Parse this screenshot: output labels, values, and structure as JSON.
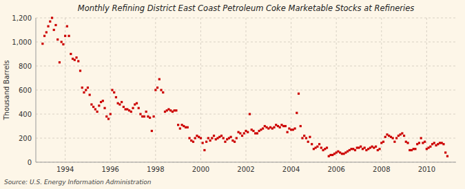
{
  "chart_data": {
    "type": "scatter",
    "title": "Monthly Refining District East Coast Petroleum Coke Marketable Stocks at Refineries",
    "y_label": "Thousand Barrels",
    "annotations": [
      "Source: U.S. Energy Information Administration"
    ],
    "color": "#cc0000",
    "marker": "square",
    "grid": true,
    "xlim": [
      1992.7,
      2011.3
    ],
    "xticks": [
      1994,
      1996,
      1998,
      2000,
      2002,
      2004,
      2006,
      2008,
      2010
    ],
    "ylim": [
      0,
      1200
    ],
    "yticks": [
      0,
      200,
      400,
      600,
      800,
      {
        "value": 1000,
        "label": "1,000"
      },
      {
        "value": 1200,
        "label": "1,200"
      }
    ],
    "x": [
      1993.0,
      1993.083,
      1993.167,
      1993.25,
      1993.333,
      1993.417,
      1993.5,
      1993.583,
      1993.667,
      1993.75,
      1993.833,
      1993.917,
      1994.0,
      1994.083,
      1994.167,
      1994.25,
      1994.333,
      1994.417,
      1994.5,
      1994.583,
      1994.667,
      1994.75,
      1994.833,
      1994.917,
      1995.0,
      1995.083,
      1995.167,
      1995.25,
      1995.333,
      1995.417,
      1995.5,
      1995.583,
      1995.667,
      1995.75,
      1995.833,
      1995.917,
      1996.0,
      1996.083,
      1996.167,
      1996.25,
      1996.333,
      1996.417,
      1996.5,
      1996.583,
      1996.667,
      1996.75,
      1996.833,
      1996.917,
      1997.0,
      1997.083,
      1997.167,
      1997.25,
      1997.333,
      1997.417,
      1997.5,
      1997.583,
      1997.667,
      1997.75,
      1997.833,
      1997.917,
      1998.0,
      1998.083,
      1998.167,
      1998.25,
      1998.333,
      1998.417,
      1998.5,
      1998.583,
      1998.667,
      1998.75,
      1998.833,
      1998.917,
      1999.0,
      1999.083,
      1999.167,
      1999.25,
      1999.333,
      1999.417,
      1999.5,
      1999.583,
      1999.667,
      1999.75,
      1999.833,
      1999.917,
      2000.0,
      2000.083,
      2000.167,
      2000.25,
      2000.333,
      2000.417,
      2000.5,
      2000.583,
      2000.667,
      2000.75,
      2000.833,
      2000.917,
      2001.0,
      2001.083,
      2001.167,
      2001.25,
      2001.333,
      2001.417,
      2001.5,
      2001.583,
      2001.667,
      2001.75,
      2001.833,
      2001.917,
      2002.0,
      2002.083,
      2002.167,
      2002.25,
      2002.333,
      2002.417,
      2002.5,
      2002.583,
      2002.667,
      2002.75,
      2002.833,
      2002.917,
      2003.0,
      2003.083,
      2003.167,
      2003.25,
      2003.333,
      2003.417,
      2003.5,
      2003.583,
      2003.667,
      2003.75,
      2003.833,
      2003.917,
      2004.0,
      2004.083,
      2004.167,
      2004.25,
      2004.333,
      2004.417,
      2004.5,
      2004.583,
      2004.667,
      2004.75,
      2004.833,
      2004.917,
      2005.0,
      2005.083,
      2005.167,
      2005.25,
      2005.333,
      2005.417,
      2005.5,
      2005.583,
      2005.667,
      2005.75,
      2005.833,
      2005.917,
      2006.0,
      2006.083,
      2006.167,
      2006.25,
      2006.333,
      2006.417,
      2006.5,
      2006.583,
      2006.667,
      2006.75,
      2006.833,
      2006.917,
      2007.0,
      2007.083,
      2007.167,
      2007.25,
      2007.333,
      2007.417,
      2007.5,
      2007.583,
      2007.667,
      2007.75,
      2007.833,
      2007.917,
      2008.0,
      2008.083,
      2008.167,
      2008.25,
      2008.333,
      2008.417,
      2008.5,
      2008.583,
      2008.667,
      2008.75,
      2008.833,
      2008.917,
      2009.0,
      2009.083,
      2009.167,
      2009.25,
      2009.333,
      2009.417,
      2009.5,
      2009.583,
      2009.667,
      2009.75,
      2009.833,
      2009.917,
      2010.0,
      2010.083,
      2010.167,
      2010.25,
      2010.333,
      2010.417,
      2010.5,
      2010.583,
      2010.667,
      2010.75,
      2010.833,
      2010.917
    ],
    "values": [
      985,
      1050,
      1080,
      1130,
      1170,
      1200,
      1100,
      1140,
      1020,
      830,
      1000,
      980,
      1050,
      1130,
      1050,
      900,
      860,
      850,
      870,
      840,
      760,
      620,
      580,
      600,
      620,
      560,
      480,
      460,
      440,
      420,
      470,
      500,
      510,
      450,
      380,
      360,
      400,
      600,
      580,
      540,
      490,
      480,
      500,
      460,
      440,
      440,
      430,
      420,
      450,
      480,
      490,
      450,
      400,
      380,
      380,
      420,
      380,
      370,
      260,
      380,
      600,
      620,
      690,
      600,
      580,
      420,
      430,
      440,
      430,
      420,
      430,
      430,
      310,
      280,
      310,
      300,
      290,
      290,
      200,
      180,
      170,
      200,
      220,
      210,
      200,
      160,
      100,
      170,
      200,
      180,
      200,
      220,
      190,
      200,
      210,
      220,
      200,
      170,
      190,
      200,
      210,
      180,
      170,
      200,
      250,
      240,
      220,
      240,
      260,
      250,
      400,
      270,
      260,
      240,
      240,
      260,
      270,
      280,
      300,
      290,
      280,
      290,
      280,
      290,
      310,
      300,
      290,
      310,
      300,
      300,
      250,
      280,
      270,
      270,
      280,
      410,
      570,
      300,
      200,
      220,
      200,
      170,
      210,
      150,
      110,
      120,
      130,
      150,
      120,
      100,
      110,
      120,
      50,
      60,
      60,
      70,
      80,
      90,
      80,
      70,
      70,
      80,
      90,
      100,
      110,
      110,
      100,
      120,
      120,
      130,
      110,
      120,
      100,
      110,
      120,
      130,
      120,
      130,
      100,
      110,
      160,
      170,
      210,
      230,
      220,
      210,
      200,
      170,
      200,
      220,
      230,
      240,
      220,
      170,
      160,
      100,
      100,
      110,
      110,
      150,
      160,
      200,
      160,
      170,
      110,
      120,
      130,
      150,
      160,
      140,
      150,
      160,
      160,
      150,
      80,
      50
    ]
  }
}
